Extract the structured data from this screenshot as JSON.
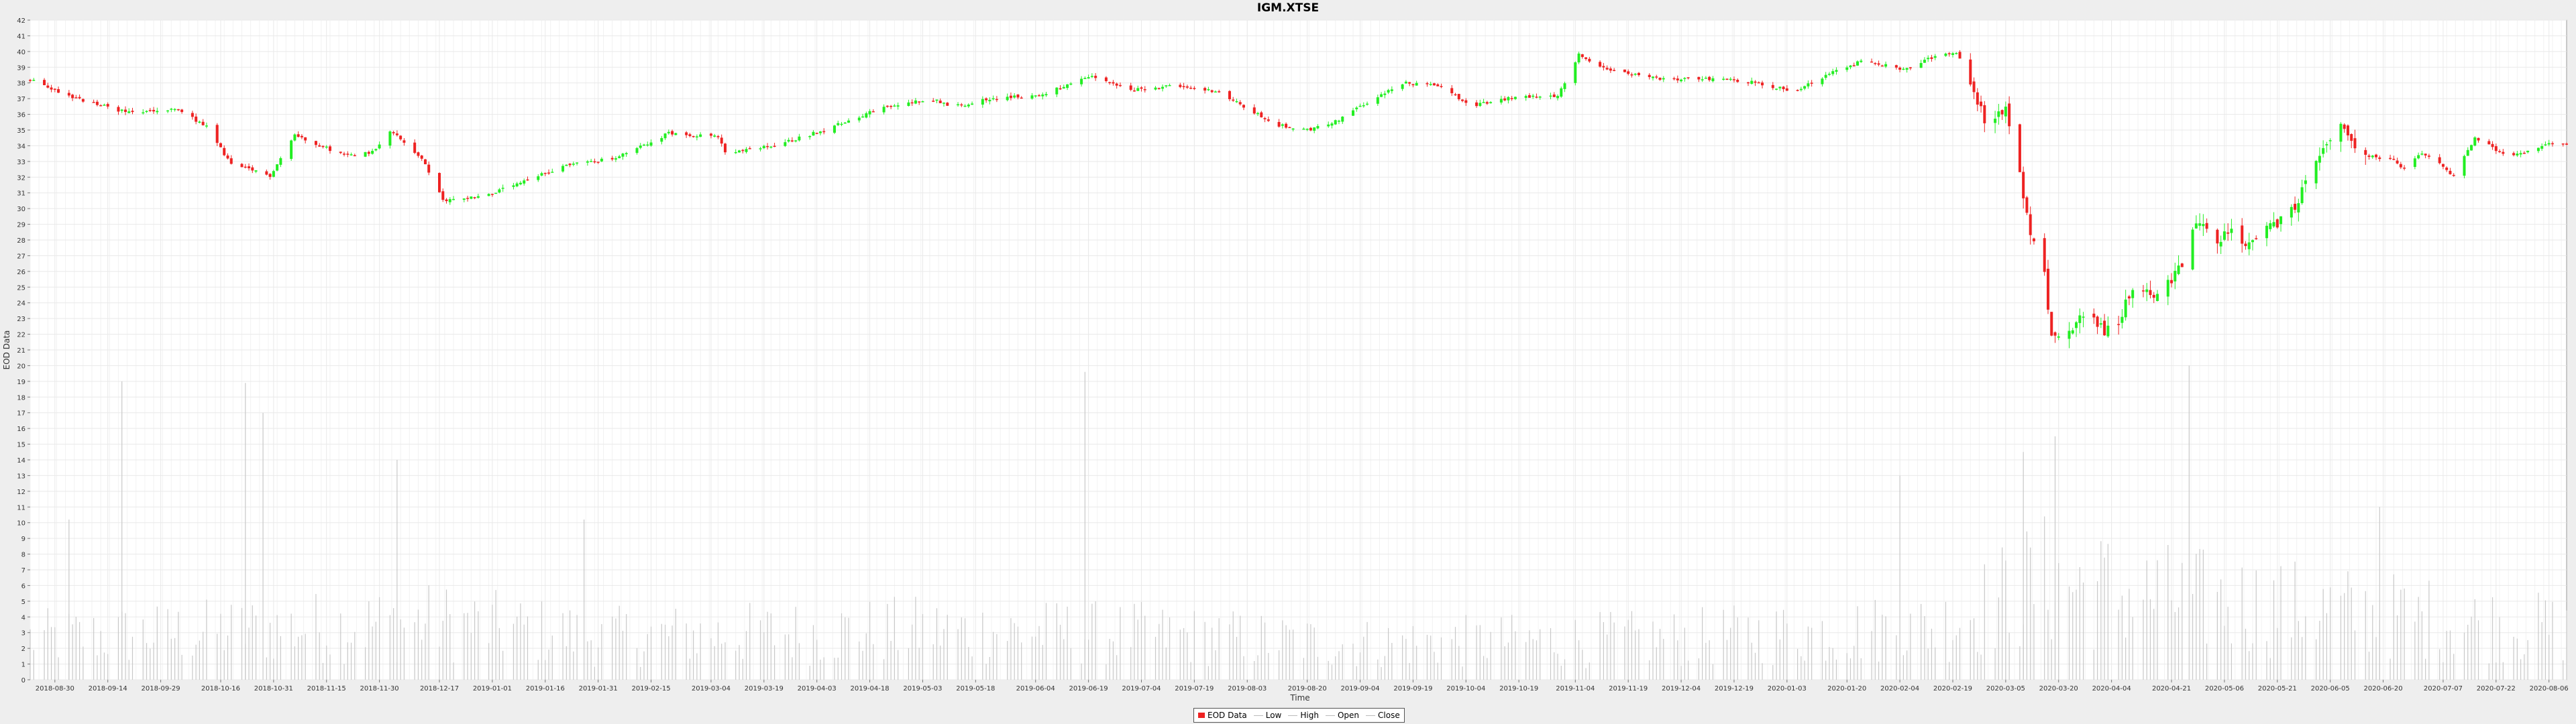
{
  "title": "IGM.XTSE",
  "chart_data": {
    "type": "candlestick",
    "title": "IGM.XTSE",
    "xlabel": "Time",
    "ylabel": "EOD Data",
    "ylim": [
      0,
      42
    ],
    "yticks": [
      0,
      1,
      2,
      3,
      4,
      5,
      6,
      7,
      8,
      9,
      10,
      11,
      12,
      13,
      14,
      15,
      16,
      17,
      18,
      19,
      20,
      21,
      22,
      23,
      24,
      25,
      26,
      27,
      28,
      29,
      30,
      31,
      32,
      33,
      34,
      35,
      36,
      37,
      38,
      39,
      40,
      41,
      42
    ],
    "xlim": [
      "2018-08-23",
      "2020-08-11"
    ],
    "xticks": [
      "2018-08-30",
      "2018-09-14",
      "2018-09-29",
      "2018-10-16",
      "2018-10-31",
      "2018-11-15",
      "2018-11-30",
      "2018-12-17",
      "2019-01-01",
      "2019-01-16",
      "2019-01-31",
      "2019-02-15",
      "2019-03-04",
      "2019-03-19",
      "2019-04-03",
      "2019-04-18",
      "2019-05-03",
      "2019-05-18",
      "2019-06-04",
      "2019-06-19",
      "2019-07-04",
      "2019-07-19",
      "2019-08-03",
      "2019-08-20",
      "2019-09-04",
      "2019-09-19",
      "2019-10-04",
      "2019-10-19",
      "2019-11-04",
      "2019-11-19",
      "2019-12-04",
      "2019-12-19",
      "2020-01-03",
      "2020-01-20",
      "2020-02-04",
      "2020-02-19",
      "2020-03-05",
      "2020-03-20",
      "2020-04-04",
      "2020-04-21",
      "2020-05-06",
      "2020-05-21",
      "2020-06-05",
      "2020-06-20",
      "2020-07-07",
      "2020-07-22",
      "2020-08-06"
    ],
    "close_trend": [
      [
        "2018-08-23",
        38.2
      ],
      [
        "2018-09-05",
        37.0
      ],
      [
        "2018-09-20",
        36.1
      ],
      [
        "2018-10-04",
        36.3
      ],
      [
        "2018-10-12",
        35.2
      ],
      [
        "2018-10-19",
        32.8
      ],
      [
        "2018-10-30",
        32.1
      ],
      [
        "2018-11-06",
        34.7
      ],
      [
        "2018-11-20",
        33.4
      ],
      [
        "2018-11-28",
        33.6
      ],
      [
        "2018-12-03",
        35.0
      ],
      [
        "2018-12-12",
        33.2
      ],
      [
        "2018-12-18",
        30.5
      ],
      [
        "2018-12-31",
        30.9
      ],
      [
        "2019-01-10",
        31.7
      ],
      [
        "2019-01-22",
        32.8
      ],
      [
        "2019-02-05",
        33.2
      ],
      [
        "2019-02-20",
        34.8
      ],
      [
        "2019-03-06",
        34.6
      ],
      [
        "2019-03-08",
        33.5
      ],
      [
        "2019-03-22",
        34.0
      ],
      [
        "2019-04-05",
        35.0
      ],
      [
        "2019-04-20",
        36.3
      ],
      [
        "2019-05-05",
        37.0
      ],
      [
        "2019-05-12",
        36.5
      ],
      [
        "2019-05-22",
        37.0
      ],
      [
        "2019-06-05",
        37.2
      ],
      [
        "2019-06-20",
        38.4
      ],
      [
        "2019-07-01",
        37.5
      ],
      [
        "2019-07-10",
        37.8
      ],
      [
        "2019-07-25",
        37.5
      ],
      [
        "2019-08-05",
        36.1
      ],
      [
        "2019-08-12",
        35.3
      ],
      [
        "2019-08-20",
        35.0
      ],
      [
        "2019-08-27",
        35.4
      ],
      [
        "2019-09-04",
        36.5
      ],
      [
        "2019-09-16",
        38.0
      ],
      [
        "2019-09-28",
        37.8
      ],
      [
        "2019-10-05",
        36.5
      ],
      [
        "2019-10-18",
        37.1
      ],
      [
        "2019-10-30",
        37.2
      ],
      [
        "2019-11-05",
        39.8
      ],
      [
        "2019-11-15",
        38.7
      ],
      [
        "2019-11-30",
        38.2
      ],
      [
        "2019-12-15",
        38.3
      ],
      [
        "2019-12-25",
        38.0
      ],
      [
        "2020-01-05",
        37.5
      ],
      [
        "2020-01-15",
        38.6
      ],
      [
        "2020-01-25",
        39.5
      ],
      [
        "2020-02-05",
        38.8
      ],
      [
        "2020-02-15",
        39.8
      ],
      [
        "2020-02-20",
        40.0
      ],
      [
        "2020-02-24",
        38.2
      ],
      [
        "2020-02-28",
        35.7
      ],
      [
        "2020-03-05",
        36.2
      ],
      [
        "2020-03-09",
        32.0
      ],
      [
        "2020-03-12",
        28.5
      ],
      [
        "2020-03-16",
        26.0
      ],
      [
        "2020-03-18",
        21.7
      ],
      [
        "2020-03-23",
        22.0
      ],
      [
        "2020-03-27",
        23.4
      ],
      [
        "2020-04-02",
        22.2
      ],
      [
        "2020-04-06",
        22.9
      ],
      [
        "2020-04-10",
        25.0
      ],
      [
        "2020-04-16",
        24.5
      ],
      [
        "2020-04-20",
        25.2
      ],
      [
        "2020-04-24",
        26.5
      ],
      [
        "2020-04-28",
        29.2
      ],
      [
        "2020-05-04",
        28.0
      ],
      [
        "2020-05-08",
        28.6
      ],
      [
        "2020-05-12",
        27.6
      ],
      [
        "2020-05-16",
        28.3
      ],
      [
        "2020-05-22",
        29.2
      ],
      [
        "2020-05-26",
        30.1
      ],
      [
        "2020-06-01",
        33.0
      ],
      [
        "2020-06-08",
        35.5
      ],
      [
        "2020-06-12",
        33.8
      ],
      [
        "2020-06-16",
        33.3
      ],
      [
        "2020-06-22",
        33.2
      ],
      [
        "2020-06-26",
        32.5
      ],
      [
        "2020-07-01",
        33.5
      ],
      [
        "2020-07-06",
        32.8
      ],
      [
        "2020-07-10",
        32.0
      ],
      [
        "2020-07-16",
        34.5
      ],
      [
        "2020-07-24",
        33.5
      ],
      [
        "2020-07-30",
        33.5
      ],
      [
        "2020-08-06",
        34.2
      ],
      [
        "2020-08-11",
        34.0
      ]
    ],
    "volume_trend": [
      [
        "2018-08-23",
        2.5
      ],
      [
        "2018-10-01",
        2.8
      ],
      [
        "2018-12-17",
        3.5
      ],
      [
        "2019-02-01",
        2.6
      ],
      [
        "2019-05-01",
        3.0
      ],
      [
        "2019-07-01",
        2.8
      ],
      [
        "2019-09-01",
        2.2
      ],
      [
        "2019-12-01",
        2.5
      ],
      [
        "2020-02-15",
        3.2
      ],
      [
        "2020-03-15",
        6.0
      ],
      [
        "2020-04-15",
        5.0
      ],
      [
        "2020-06-15",
        4.0
      ],
      [
        "2020-08-11",
        3.0
      ]
    ],
    "volume_spikes": [
      [
        "2018-09-18",
        19.0
      ],
      [
        "2018-10-23",
        18.9
      ],
      [
        "2018-10-28",
        17.0
      ],
      [
        "2018-09-03",
        10.2
      ],
      [
        "2018-12-05",
        14.0
      ],
      [
        "2019-01-27",
        10.2
      ],
      [
        "2019-06-18",
        19.6
      ],
      [
        "2020-03-10",
        14.5
      ],
      [
        "2020-03-19",
        15.5
      ],
      [
        "2020-04-26",
        20.0
      ],
      [
        "2020-02-04",
        13.0
      ],
      [
        "2020-06-19",
        11.0
      ]
    ],
    "legend": [
      "EOD Data",
      "Low",
      "High",
      "Open",
      "Close"
    ],
    "colors": {
      "up": "#22ee22",
      "down": "#ee2222",
      "volume": "#c8c8c8",
      "grid": "#e9e9e9"
    },
    "grid": true,
    "legend_position": "bottom-center"
  }
}
